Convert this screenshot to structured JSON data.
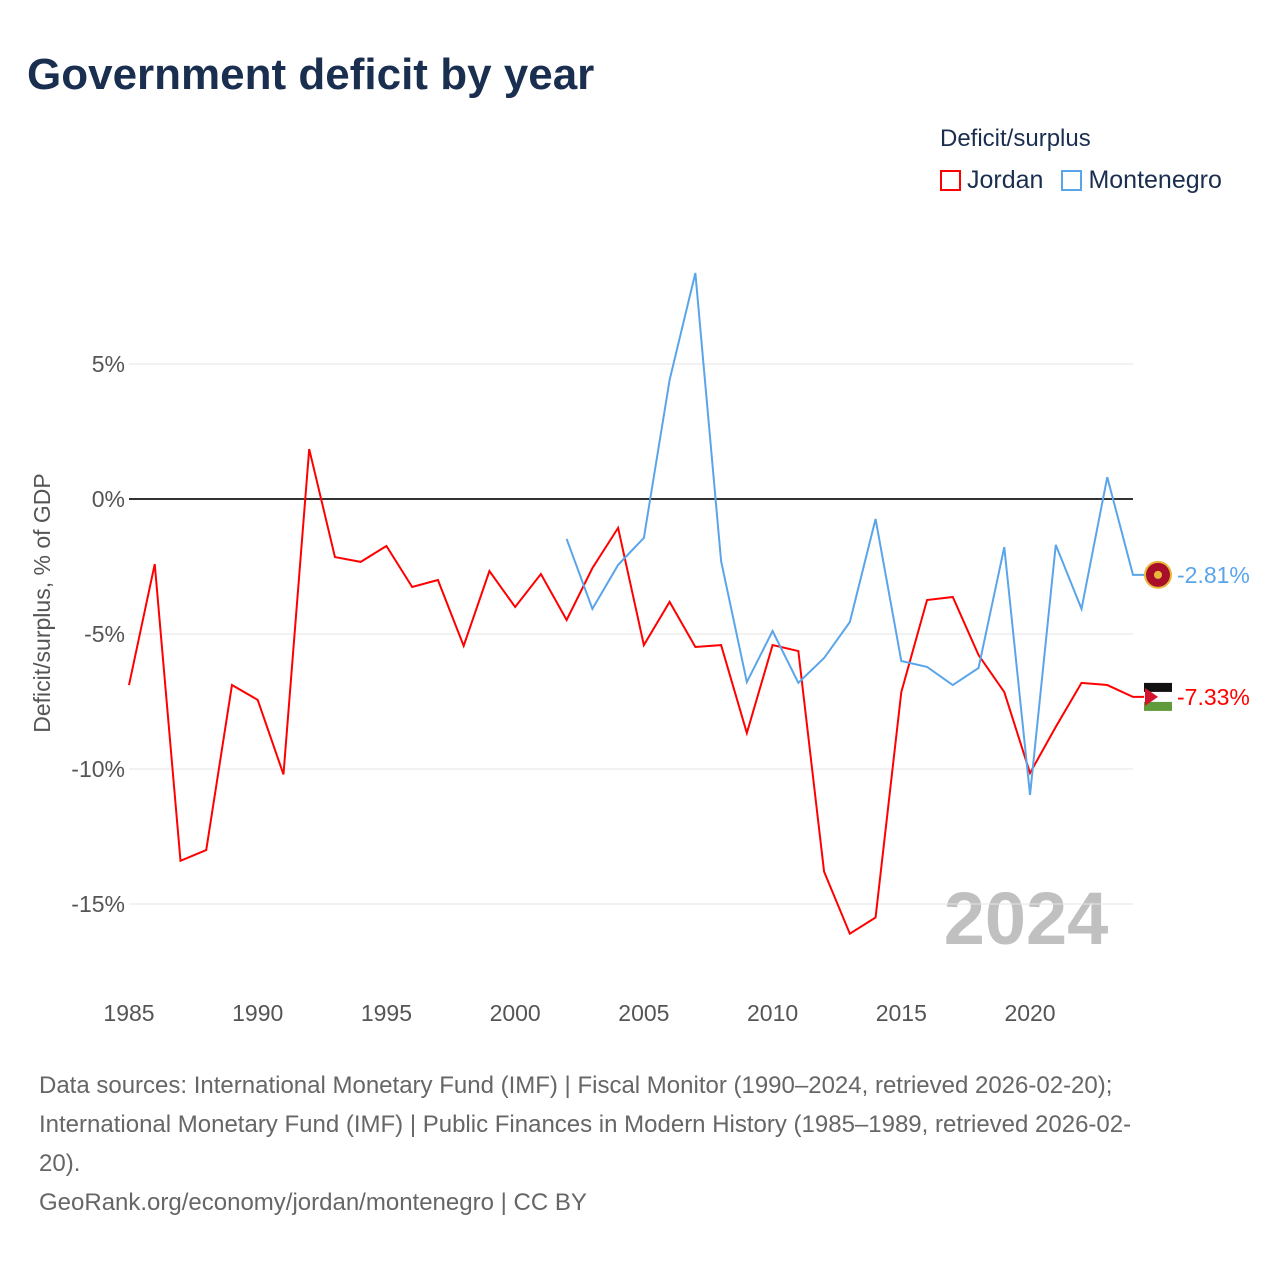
{
  "title": "Government deficit by year",
  "legend": {
    "title": "Deficit/surplus",
    "items": [
      "Jordan",
      "Montenegro"
    ]
  },
  "colors": {
    "Jordan": "#ff0000",
    "Montenegro": "#5aa5ea"
  },
  "year_label": "2024",
  "sources": [
    "Data sources: International Monetary Fund (IMF) | Fiscal Monitor (1990–2024, retrieved 2026-02-20);",
    "International Monetary Fund (IMF) | Public Finances in Modern History (1985–1989, retrieved 2026-02-",
    "20).",
    "GeoRank.org/economy/jordan/montenegro | CC BY"
  ],
  "chart_data": {
    "type": "line",
    "title": "Government deficit by year",
    "xlabel": "",
    "ylabel": "Deficit/surplus, % of GDP",
    "xlim": [
      1985,
      2024
    ],
    "ylim": [
      -17,
      10
    ],
    "xticks": [
      1985,
      1990,
      1995,
      2000,
      2005,
      2010,
      2015,
      2020
    ],
    "yticks": [
      5,
      0,
      -5,
      -10,
      -15
    ],
    "ytick_labels": [
      "5%",
      "0%",
      "-5%",
      "-10%",
      "-15%"
    ],
    "series": [
      {
        "name": "Jordan",
        "end_label": "-7.33%",
        "x_start": 1985,
        "values": [
          -6.89,
          -2.41,
          -13.4,
          -13.0,
          -6.89,
          -7.44,
          -10.2,
          1.85,
          -2.15,
          -2.33,
          -1.74,
          -3.26,
          -3.0,
          -5.44,
          -2.67,
          -4.0,
          -2.78,
          -4.48,
          -2.56,
          -1.07,
          -5.41,
          -3.81,
          -5.48,
          -5.41,
          -8.67,
          -5.41,
          -5.63,
          -13.8,
          -16.1,
          -15.5,
          -7.15,
          -3.74,
          -3.63,
          -5.78,
          -7.15,
          -10.15,
          -8.44,
          -6.81,
          -6.89,
          -7.33
        ]
      },
      {
        "name": "Montenegro",
        "end_label": "-2.81%",
        "x_start": 2002,
        "values": [
          -1.48,
          -4.07,
          -2.44,
          -1.44,
          4.41,
          8.37,
          -2.3,
          -6.78,
          -4.89,
          -6.81,
          -5.89,
          -4.56,
          -0.74,
          -6.0,
          -6.22,
          -6.89,
          -6.26,
          -1.78,
          -10.96,
          -1.7,
          -4.07,
          0.81,
          -2.81
        ]
      }
    ]
  }
}
